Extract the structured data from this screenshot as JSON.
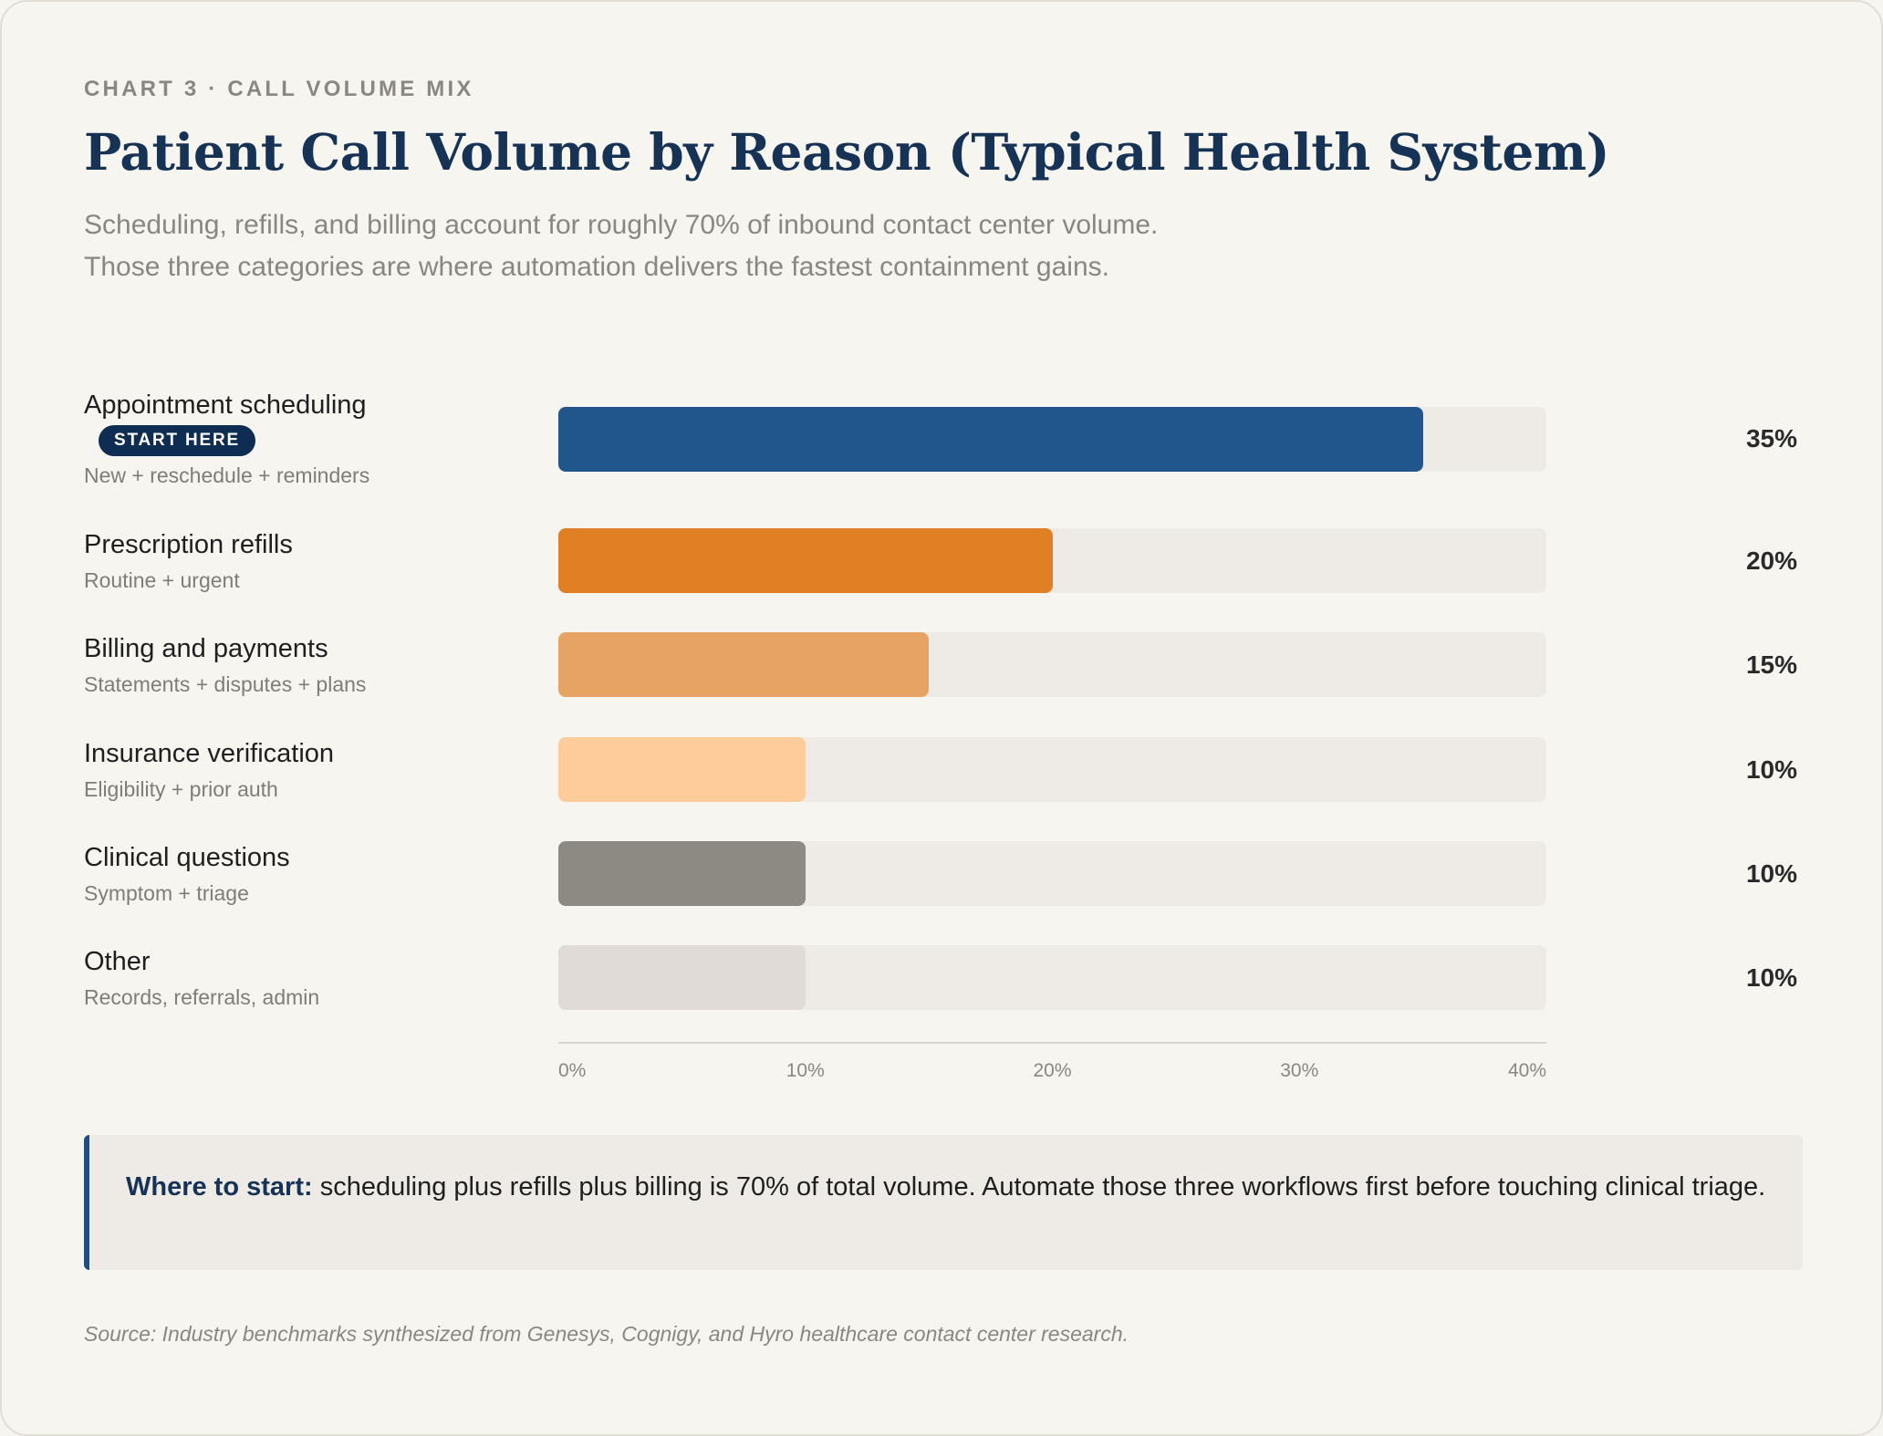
{
  "eyebrow": "CHART 3 · CALL VOLUME MIX",
  "chart_data": {
    "type": "bar",
    "orientation": "horizontal",
    "title": "Patient Call Volume by Reason (Typical Health System)",
    "subtitle": "Scheduling, refills, and billing account for roughly 70% of inbound contact center volume. Those three categories are where automation delivers the fastest containment gains.",
    "xlim": [
      0,
      40
    ],
    "x_ticks": [
      "0%",
      "10%",
      "20%",
      "30%",
      "40%"
    ],
    "grid": false,
    "categories": [
      {
        "name": "Appointment scheduling",
        "desc": "New + reschedule + reminders",
        "value": 35,
        "label": "35%",
        "color": "#20568c",
        "badge": "START HERE"
      },
      {
        "name": "Prescription refills",
        "desc": "Routine + urgent",
        "value": 20,
        "label": "20%",
        "color": "#e07f23"
      },
      {
        "name": "Billing and payments",
        "desc": "Statements + disputes + plans",
        "value": 15,
        "label": "15%",
        "color": "#e6a364"
      },
      {
        "name": "Insurance verification",
        "desc": "Eligibility + prior auth",
        "value": 10,
        "label": "10%",
        "color": "#fecb9b"
      },
      {
        "name": "Clinical questions",
        "desc": "Symptom + triage",
        "value": 10,
        "label": "10%",
        "color": "#8d8a84"
      },
      {
        "name": "Other",
        "desc": "Records, referrals, admin",
        "value": 10,
        "label": "10%",
        "color": "#e0dbd6"
      }
    ]
  },
  "callout": {
    "lead": "Where to start:",
    "text": " scheduling plus refills plus billing is 70% of total volume. Automate those three workflows first before touching clinical triage."
  },
  "source": "Source: Industry benchmarks synthesized from Genesys, Cognigy, and Hyro healthcare contact center research."
}
